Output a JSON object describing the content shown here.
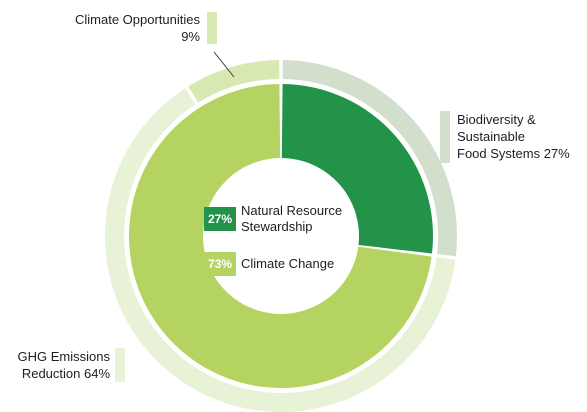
{
  "chart_data": {
    "type": "donut",
    "inner": [
      {
        "label": "Natural Resource Stewardship",
        "value": 27,
        "display": "27%",
        "color": "#23934a"
      },
      {
        "label": "Climate Change",
        "value": 73,
        "display": "73%",
        "color": "#b5d360"
      }
    ],
    "outer": [
      {
        "label": "Biodiversity & Sustainable Food Systems",
        "value": 27,
        "display": "27%",
        "color": "#d2dfcd"
      },
      {
        "label": "GHG Emissions Reduction",
        "value": 64,
        "display": "64%",
        "color": "#e8f2d6"
      },
      {
        "label": "Climate Opportunities",
        "value": 9,
        "display": "9%",
        "color": "#d8e8b3"
      }
    ]
  },
  "labels": {
    "biodiversity": {
      "lines": [
        "Biodiversity &",
        "Sustainable",
        "Food Systems 27%"
      ]
    },
    "ghg": {
      "lines": [
        "GHG Emissions",
        "Reduction 64%"
      ]
    },
    "climate_opp": {
      "lines": [
        "Climate Opportunities",
        "9%"
      ]
    }
  },
  "legend": {
    "natural": {
      "pct": "27%",
      "lines": [
        "Natural Resource",
        "Stewardship"
      ]
    },
    "climate": {
      "pct": "73%",
      "lines": [
        "Climate Change"
      ]
    }
  }
}
